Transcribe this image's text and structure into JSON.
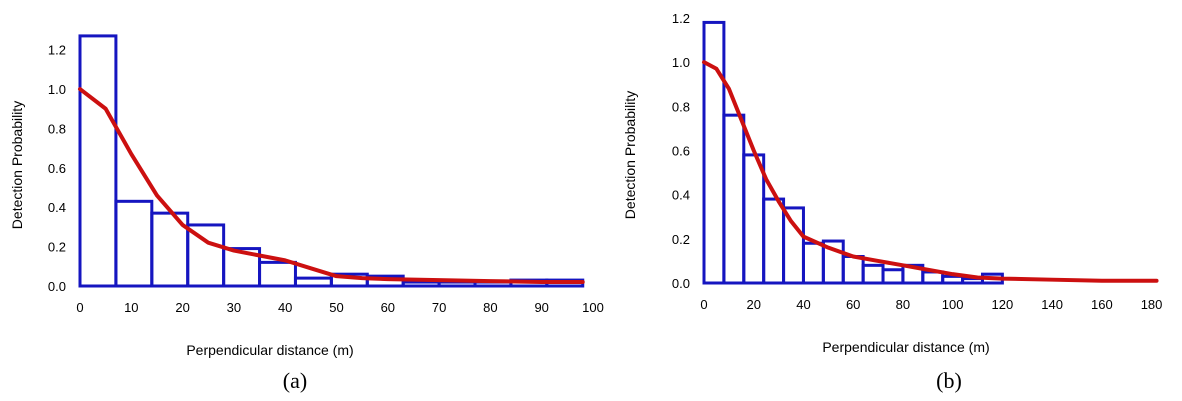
{
  "chart_data": [
    {
      "panel": "(a)",
      "type": "bar",
      "xlabel": "Perpendicular distance (m)",
      "ylabel": "Detection Probability",
      "xlim": [
        0,
        100
      ],
      "ylim": [
        0,
        1.3
      ],
      "xticks": [
        0,
        10,
        20,
        30,
        40,
        50,
        60,
        70,
        80,
        90,
        100
      ],
      "yticks": [
        "0.0",
        "0.2",
        "0.4",
        "0.6",
        "0.8",
        "1.0",
        "1.2"
      ],
      "xtick_labels": [
        "0",
        "10",
        "20",
        "30",
        "40",
        "50",
        "60",
        "70",
        "80",
        "90",
        "100"
      ],
      "bar_color": "#1515c0",
      "curve_color": "#cc1010",
      "histogram": {
        "bin_edges": [
          0,
          7,
          14,
          21,
          28,
          35,
          42,
          49,
          56,
          63,
          70,
          77,
          84,
          91,
          98
        ],
        "values": [
          1.27,
          0.43,
          0.37,
          0.31,
          0.19,
          0.12,
          0.04,
          0.06,
          0.05,
          0.02,
          0.02,
          0.02,
          0.03,
          0.03
        ]
      },
      "curve": {
        "x": [
          0,
          5,
          10,
          15,
          20,
          25,
          30,
          35,
          40,
          45,
          50,
          55,
          60,
          70,
          80,
          90,
          98
        ],
        "y": [
          1.0,
          0.9,
          0.67,
          0.46,
          0.31,
          0.22,
          0.18,
          0.155,
          0.13,
          0.09,
          0.05,
          0.04,
          0.035,
          0.03,
          0.025,
          0.02,
          0.02
        ]
      }
    },
    {
      "panel": "(b)",
      "type": "bar",
      "xlabel": "Perpendicular distance (m)",
      "ylabel": "Detection Probability",
      "xlim": [
        0,
        185
      ],
      "ylim": [
        0,
        1.2
      ],
      "xticks": [
        0,
        20,
        40,
        60,
        80,
        100,
        120,
        140,
        160,
        180
      ],
      "yticks": [
        "0.0",
        "0.2",
        "0.4",
        "0.6",
        "0.8",
        "1.0",
        "1.2"
      ],
      "xtick_labels": [
        "0",
        "20",
        "40",
        "60",
        "80",
        "100",
        "120",
        "140",
        "160",
        "180"
      ],
      "bar_color": "#1515c0",
      "curve_color": "#cc1010",
      "histogram": {
        "bin_edges": [
          0,
          8,
          16,
          24,
          32,
          40,
          48,
          56,
          64,
          72,
          80,
          88,
          96,
          104,
          112,
          120
        ],
        "values": [
          1.18,
          0.76,
          0.58,
          0.38,
          0.34,
          0.18,
          0.19,
          0.12,
          0.08,
          0.06,
          0.08,
          0.05,
          0.03,
          0.02,
          0.04
        ]
      },
      "curve": {
        "x": [
          0,
          5,
          10,
          15,
          20,
          25,
          30,
          35,
          40,
          50,
          60,
          70,
          80,
          90,
          100,
          110,
          120,
          140,
          160,
          182
        ],
        "y": [
          1.0,
          0.97,
          0.88,
          0.74,
          0.6,
          0.47,
          0.37,
          0.28,
          0.21,
          0.16,
          0.12,
          0.1,
          0.08,
          0.06,
          0.04,
          0.025,
          0.02,
          0.015,
          0.01,
          0.01
        ]
      }
    }
  ]
}
